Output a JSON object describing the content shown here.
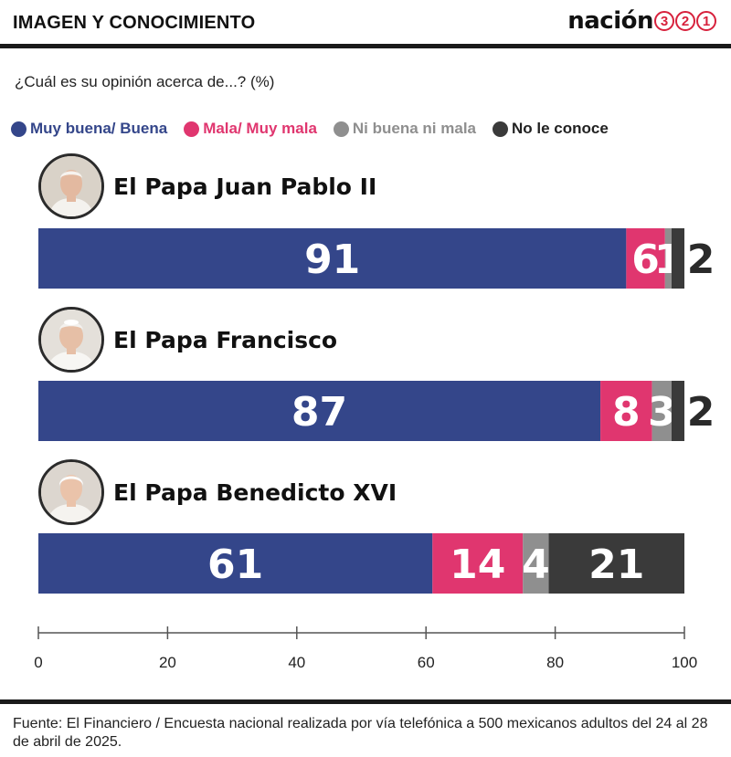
{
  "header": {
    "title": "IMAGEN Y CONOCIMIENTO",
    "brand_word": "nación",
    "brand_digits": [
      "3",
      "2",
      "1"
    ]
  },
  "question": "¿Cuál es su opinión acerca de...? (%)",
  "colors": {
    "good": "#34468a",
    "bad": "#e0366f",
    "neutral": "#8f8f8f",
    "unknown": "#3a3a3a",
    "brand": "#d7213c"
  },
  "chart_data": {
    "type": "bar",
    "orientation": "horizontal",
    "stacked": true,
    "title": "",
    "xlabel": "",
    "ylabel": "",
    "xlim": [
      0,
      100
    ],
    "x_ticks": [
      0,
      20,
      40,
      60,
      80,
      100
    ],
    "categories": [
      "El Papa Juan Pablo II",
      "El Papa Francisco",
      "El Papa Benedicto XVI"
    ],
    "series": [
      {
        "name": "Muy buena/ Buena",
        "color": "#34468a",
        "values": [
          91,
          87,
          61
        ]
      },
      {
        "name": "Mala/ Muy mala",
        "color": "#e0366f",
        "values": [
          6,
          8,
          14
        ]
      },
      {
        "name": "Ni buena ni mala",
        "color": "#8f8f8f",
        "values": [
          1,
          3,
          4
        ]
      },
      {
        "name": "No le conoce",
        "color": "#3a3a3a",
        "values": [
          2,
          2,
          21
        ]
      }
    ],
    "legend": "top"
  },
  "source": "Fuente: El Financiero / Encuesta nacional realizada por vía telefónica a 500 mexicanos adultos del 24 al 28 de abril de 2025."
}
